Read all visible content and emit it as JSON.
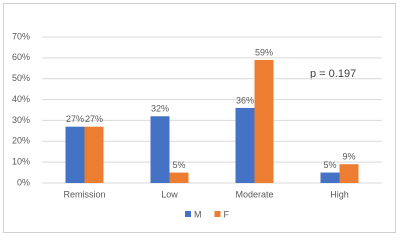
{
  "chart_data": {
    "type": "bar",
    "categories": [
      "Remission",
      "Low",
      "Moderate",
      "High"
    ],
    "series": [
      {
        "name": "M",
        "color": "#4472c4",
        "values": [
          27,
          32,
          36,
          5
        ],
        "value_labels": [
          "27%",
          "32%",
          "36%",
          "5%"
        ]
      },
      {
        "name": "F",
        "color": "#ed7d31",
        "values": [
          27,
          5,
          59,
          9
        ],
        "value_labels": [
          "27%",
          "5%",
          "59%",
          "9%"
        ]
      }
    ],
    "ylim": [
      0,
      70
    ],
    "yticks": [
      {
        "value": 0,
        "label": "0%"
      },
      {
        "value": 10,
        "label": "10%"
      },
      {
        "value": 20,
        "label": "20%"
      },
      {
        "value": 30,
        "label": "30%"
      },
      {
        "value": 40,
        "label": "40%"
      },
      {
        "value": 50,
        "label": "50%"
      },
      {
        "value": 60,
        "label": "60%"
      },
      {
        "value": 70,
        "label": "70%"
      }
    ],
    "grid": true,
    "annotation": "p = 0.197",
    "legend": "bottom"
  }
}
